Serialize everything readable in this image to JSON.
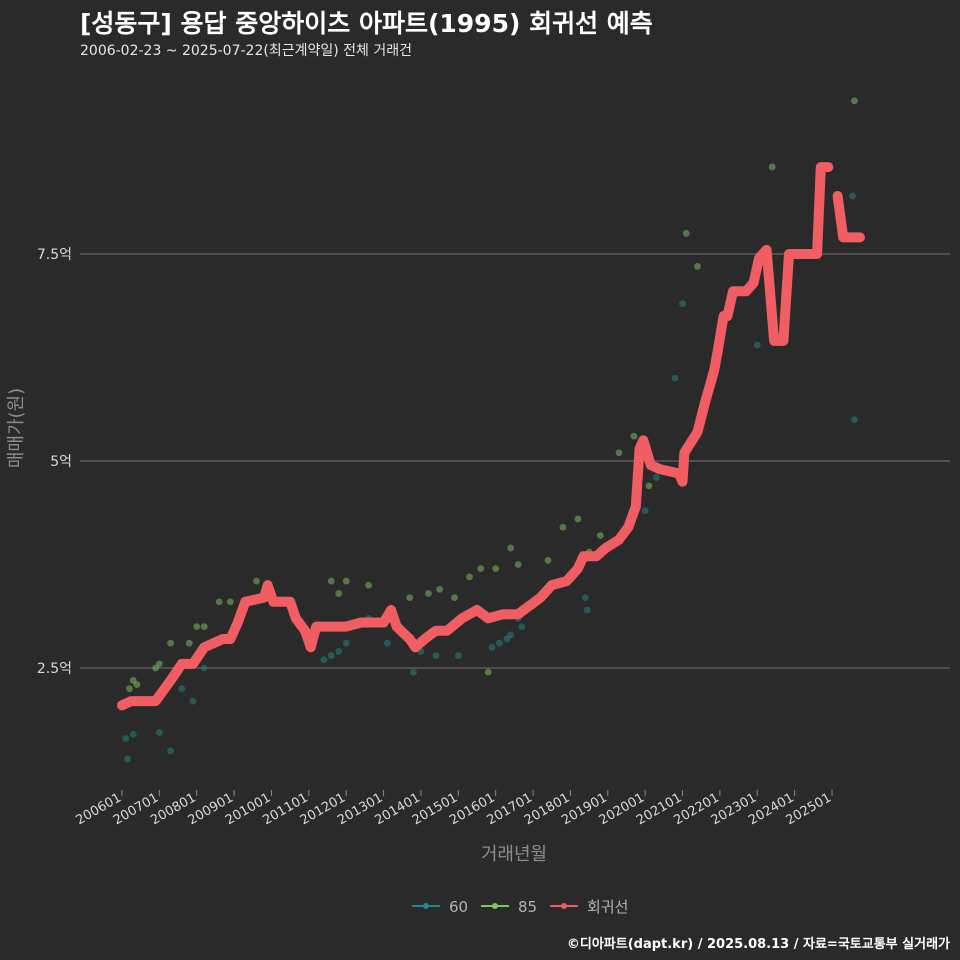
{
  "chart_data": {
    "type": "scatter+line",
    "title": "[성동구] 용답 중앙하이츠 아파트(1995) 회귀선 예측",
    "subtitle": "2006-02-23 ~ 2025-07-22(최근계약일) 전체 거래건",
    "xlabel": "거래년월",
    "ylabel": "매매가(원)",
    "caption": "©디아파트(dapt.kr) / 2025.08.13 / 자료=국토교통부 실거래가",
    "ylim": [
      1.0,
      9.8
    ],
    "xlim": [
      2006.0,
      2025.75
    ],
    "y_ticks": [
      {
        "value": 2.5,
        "label": "2.5억"
      },
      {
        "value": 5.0,
        "label": "5억"
      },
      {
        "value": 7.5,
        "label": "7.5억"
      }
    ],
    "x_ticks": [
      {
        "value": 2006.0,
        "label": "200601"
      },
      {
        "value": 2007.0,
        "label": "200701"
      },
      {
        "value": 2008.0,
        "label": "200801"
      },
      {
        "value": 2009.0,
        "label": "200901"
      },
      {
        "value": 2010.0,
        "label": "201001"
      },
      {
        "value": 2011.0,
        "label": "201101"
      },
      {
        "value": 2012.0,
        "label": "201201"
      },
      {
        "value": 2013.0,
        "label": "201301"
      },
      {
        "value": 2014.0,
        "label": "201401"
      },
      {
        "value": 2015.0,
        "label": "201501"
      },
      {
        "value": 2016.0,
        "label": "201601"
      },
      {
        "value": 2017.0,
        "label": "201701"
      },
      {
        "value": 2018.0,
        "label": "201801"
      },
      {
        "value": 2019.0,
        "label": "201901"
      },
      {
        "value": 2020.0,
        "label": "202001"
      },
      {
        "value": 2021.0,
        "label": "202101"
      },
      {
        "value": 2022.0,
        "label": "202201"
      },
      {
        "value": 2023.0,
        "label": "202301"
      },
      {
        "value": 2024.0,
        "label": "202401"
      },
      {
        "value": 2025.0,
        "label": "202501"
      }
    ],
    "series": [
      {
        "name": "60",
        "kind": "scatter",
        "color": "#1f8a87",
        "points": [
          [
            2006.1,
            1.65
          ],
          [
            2006.15,
            1.4
          ],
          [
            2006.3,
            1.7
          ],
          [
            2007.0,
            1.72
          ],
          [
            2007.3,
            1.5
          ],
          [
            2007.6,
            2.25
          ],
          [
            2007.9,
            2.1
          ],
          [
            2008.2,
            2.5
          ],
          [
            2011.4,
            2.6
          ],
          [
            2011.6,
            2.65
          ],
          [
            2011.8,
            2.7
          ],
          [
            2012.0,
            2.8
          ],
          [
            2012.6,
            3.1
          ],
          [
            2013.1,
            2.8
          ],
          [
            2013.8,
            2.45
          ],
          [
            2014.0,
            2.7
          ],
          [
            2014.4,
            2.65
          ],
          [
            2015.0,
            2.65
          ],
          [
            2015.9,
            2.75
          ],
          [
            2016.1,
            2.8
          ],
          [
            2016.3,
            2.85
          ],
          [
            2016.4,
            2.9
          ],
          [
            2016.6,
            3.1
          ],
          [
            2016.7,
            3.0
          ],
          [
            2018.0,
            3.6
          ],
          [
            2018.4,
            3.35
          ],
          [
            2018.45,
            3.2
          ],
          [
            2020.0,
            4.4
          ],
          [
            2020.3,
            4.8
          ],
          [
            2020.8,
            6.0
          ],
          [
            2021.0,
            6.9
          ],
          [
            2023.0,
            6.4
          ],
          [
            2025.55,
            8.2
          ],
          [
            2025.6,
            5.5
          ]
        ]
      },
      {
        "name": "85",
        "kind": "scatter",
        "color": "#7dc95e",
        "points": [
          [
            2006.2,
            2.25
          ],
          [
            2006.3,
            2.35
          ],
          [
            2006.4,
            2.3
          ],
          [
            2006.9,
            2.5
          ],
          [
            2007.0,
            2.55
          ],
          [
            2007.3,
            2.8
          ],
          [
            2007.8,
            2.8
          ],
          [
            2008.0,
            3.0
          ],
          [
            2008.2,
            3.0
          ],
          [
            2008.6,
            3.3
          ],
          [
            2008.9,
            3.3
          ],
          [
            2009.6,
            3.55
          ],
          [
            2011.6,
            3.55
          ],
          [
            2011.8,
            3.4
          ],
          [
            2012.0,
            3.55
          ],
          [
            2012.6,
            3.5
          ],
          [
            2013.7,
            3.35
          ],
          [
            2014.2,
            3.4
          ],
          [
            2014.5,
            3.45
          ],
          [
            2014.9,
            3.35
          ],
          [
            2015.3,
            3.6
          ],
          [
            2015.6,
            3.7
          ],
          [
            2015.8,
            2.45
          ],
          [
            2016.0,
            3.7
          ],
          [
            2016.4,
            3.95
          ],
          [
            2016.6,
            3.75
          ],
          [
            2017.4,
            3.8
          ],
          [
            2017.8,
            4.2
          ],
          [
            2018.2,
            4.3
          ],
          [
            2018.5,
            3.9
          ],
          [
            2018.8,
            4.1
          ],
          [
            2019.3,
            5.1
          ],
          [
            2019.7,
            5.3
          ],
          [
            2020.1,
            4.7
          ],
          [
            2021.1,
            7.75
          ],
          [
            2021.4,
            7.35
          ],
          [
            2023.4,
            8.55
          ],
          [
            2025.6,
            9.35
          ]
        ]
      },
      {
        "name": "회귀선",
        "kind": "line",
        "color": "#f05d63",
        "segments": [
          [
            [
              2006.0,
              2.05
            ],
            [
              2006.25,
              2.1
            ],
            [
              2006.9,
              2.1
            ],
            [
              2007.3,
              2.35
            ],
            [
              2007.6,
              2.55
            ],
            [
              2007.9,
              2.55
            ],
            [
              2008.2,
              2.75
            ],
            [
              2008.7,
              2.85
            ],
            [
              2008.9,
              2.85
            ],
            [
              2009.1,
              3.05
            ],
            [
              2009.3,
              3.3
            ],
            [
              2009.8,
              3.35
            ],
            [
              2009.9,
              3.5
            ],
            [
              2010.05,
              3.3
            ],
            [
              2010.5,
              3.3
            ],
            [
              2010.65,
              3.1
            ],
            [
              2010.9,
              2.95
            ],
            [
              2011.05,
              2.75
            ],
            [
              2011.2,
              3.0
            ],
            [
              2011.6,
              3.0
            ],
            [
              2012.0,
              3.0
            ],
            [
              2012.4,
              3.05
            ],
            [
              2012.6,
              3.05
            ],
            [
              2013.0,
              3.05
            ],
            [
              2013.2,
              3.2
            ],
            [
              2013.35,
              3.0
            ],
            [
              2013.7,
              2.85
            ],
            [
              2013.85,
              2.75
            ],
            [
              2014.1,
              2.85
            ],
            [
              2014.4,
              2.95
            ],
            [
              2014.7,
              2.95
            ],
            [
              2015.1,
              3.1
            ],
            [
              2015.5,
              3.2
            ],
            [
              2015.8,
              3.1
            ],
            [
              2016.2,
              3.15
            ],
            [
              2016.6,
              3.15
            ],
            [
              2016.9,
              3.25
            ],
            [
              2017.2,
              3.35
            ],
            [
              2017.5,
              3.5
            ],
            [
              2017.9,
              3.55
            ],
            [
              2018.2,
              3.7
            ],
            [
              2018.35,
              3.85
            ],
            [
              2018.7,
              3.85
            ],
            [
              2018.95,
              3.95
            ],
            [
              2019.3,
              4.05
            ],
            [
              2019.55,
              4.2
            ],
            [
              2019.75,
              4.45
            ],
            [
              2019.85,
              5.15
            ],
            [
              2019.95,
              5.25
            ],
            [
              2020.15,
              4.95
            ],
            [
              2020.4,
              4.9
            ],
            [
              2020.9,
              4.85
            ],
            [
              2021.0,
              4.75
            ],
            [
              2021.05,
              5.1
            ],
            [
              2021.4,
              5.35
            ],
            [
              2021.6,
              5.7
            ],
            [
              2021.85,
              6.1
            ],
            [
              2021.95,
              6.35
            ],
            [
              2022.1,
              6.75
            ],
            [
              2022.2,
              6.75
            ],
            [
              2022.35,
              7.05
            ],
            [
              2022.7,
              7.05
            ],
            [
              2022.9,
              7.15
            ],
            [
              2023.05,
              7.45
            ],
            [
              2023.25,
              7.55
            ],
            [
              2023.45,
              6.45
            ],
            [
              2023.7,
              6.45
            ],
            [
              2023.85,
              7.5
            ],
            [
              2024.3,
              7.5
            ],
            [
              2024.6,
              7.5
            ],
            [
              2024.7,
              8.55
            ],
            [
              2024.9,
              8.55
            ]
          ],
          [
            [
              2025.15,
              8.2
            ],
            [
              2025.3,
              7.7
            ],
            [
              2025.75,
              7.7
            ]
          ]
        ]
      }
    ],
    "legend": {
      "position": "bottom",
      "items": [
        {
          "label": "60",
          "color": "#1f8a87"
        },
        {
          "label": "85",
          "color": "#7dc95e"
        },
        {
          "label": "회귀선",
          "color": "#f05d63"
        }
      ]
    }
  }
}
